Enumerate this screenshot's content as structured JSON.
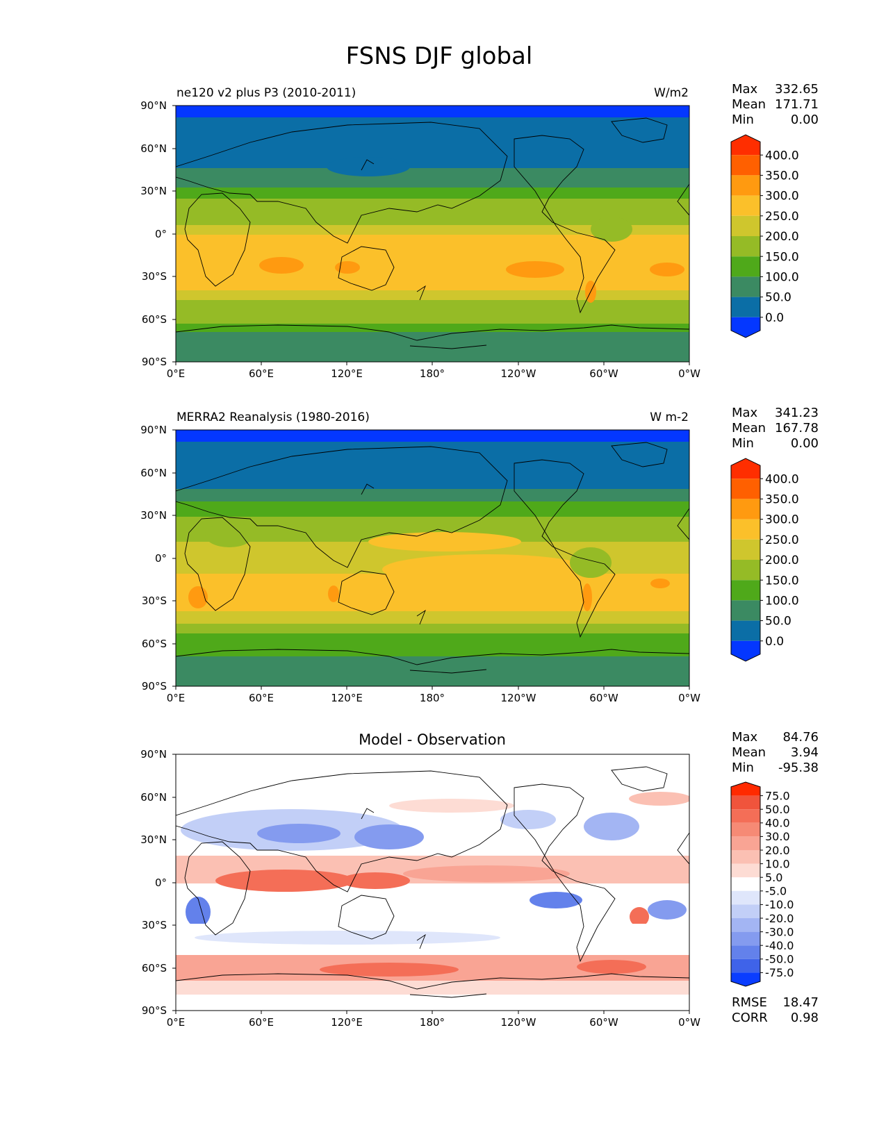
{
  "figure_title": "FSNS DJF global",
  "chart_data": [
    {
      "type": "heatmap",
      "subtitle_left": "ne120 v2 plus P3 (2010-2011)",
      "subtitle_right": "W/m2",
      "stats": [
        {
          "label": "Max",
          "value": "332.65"
        },
        {
          "label": "Mean",
          "value": "171.71"
        },
        {
          "label": "Min",
          "value": "0.00"
        }
      ],
      "colorbar": {
        "labels": [
          "400.0",
          "350.0",
          "300.0",
          "250.0",
          "200.0",
          "150.0",
          "100.0",
          "50.0",
          "0.0"
        ],
        "colors": [
          "#ff2e00",
          "#ff6000",
          "#ff9a10",
          "#fbc02a",
          "#cfc62d",
          "#95bb26",
          "#4fa91a",
          "#3b8a62",
          "#0b6ea6",
          "#0437ff"
        ]
      },
      "x_ticks": [
        "0°E",
        "60°E",
        "120°E",
        "180°",
        "120°W",
        "60°W",
        "0°W"
      ],
      "y_ticks": [
        "90°N",
        "60°N",
        "30°N",
        "0°",
        "30°S",
        "60°S",
        "90°S"
      ],
      "xlim": [
        0,
        360
      ],
      "ylim": [
        -90,
        90
      ]
    },
    {
      "type": "heatmap",
      "subtitle_left": "MERRA2 Reanalysis (1980-2016)",
      "subtitle_right": "W m-2",
      "stats": [
        {
          "label": "Max",
          "value": "341.23"
        },
        {
          "label": "Mean",
          "value": "167.78"
        },
        {
          "label": "Min",
          "value": "0.00"
        }
      ],
      "colorbar": {
        "labels": [
          "400.0",
          "350.0",
          "300.0",
          "250.0",
          "200.0",
          "150.0",
          "100.0",
          "50.0",
          "0.0"
        ],
        "colors": [
          "#ff2e00",
          "#ff6000",
          "#ff9a10",
          "#fbc02a",
          "#cfc62d",
          "#95bb26",
          "#4fa91a",
          "#3b8a62",
          "#0b6ea6",
          "#0437ff"
        ]
      },
      "x_ticks": [
        "0°E",
        "60°E",
        "120°E",
        "180°",
        "120°W",
        "60°W",
        "0°W"
      ],
      "y_ticks": [
        "90°N",
        "60°N",
        "30°N",
        "0°",
        "30°S",
        "60°S",
        "90°S"
      ],
      "xlim": [
        0,
        360
      ],
      "ylim": [
        -90,
        90
      ]
    },
    {
      "type": "heatmap",
      "title": "Model - Observation",
      "stats": [
        {
          "label": "Max",
          "value": "84.76"
        },
        {
          "label": "Mean",
          "value": "3.94"
        },
        {
          "label": "Min",
          "value": "-95.38"
        }
      ],
      "metrics": [
        {
          "label": "RMSE",
          "value": "18.47"
        },
        {
          "label": "CORR",
          "value": "0.98"
        }
      ],
      "colorbar": {
        "labels": [
          "75.0",
          "50.0",
          "40.0",
          "30.0",
          "20.0",
          "10.0",
          "5.0",
          "-5.0",
          "-10.0",
          "-20.0",
          "-30.0",
          "-40.0",
          "-50.0",
          "-75.0"
        ],
        "colors": [
          "#ff2a00",
          "#f0543c",
          "#f46e57",
          "#f68a75",
          "#f9a494",
          "#fbc0b3",
          "#fddcd4",
          "#ffffff",
          "#dfe6fb",
          "#c2cff7",
          "#a3b5f3",
          "#849bef",
          "#6381eb",
          "#3f63e9",
          "#0a3dff"
        ]
      },
      "x_ticks": [
        "0°E",
        "60°E",
        "120°E",
        "180°",
        "120°W",
        "60°W",
        "0°W"
      ],
      "y_ticks": [
        "90°N",
        "60°N",
        "30°N",
        "0°",
        "30°S",
        "60°S",
        "90°S"
      ],
      "xlim": [
        0,
        360
      ],
      "ylim": [
        -90,
        90
      ]
    }
  ]
}
